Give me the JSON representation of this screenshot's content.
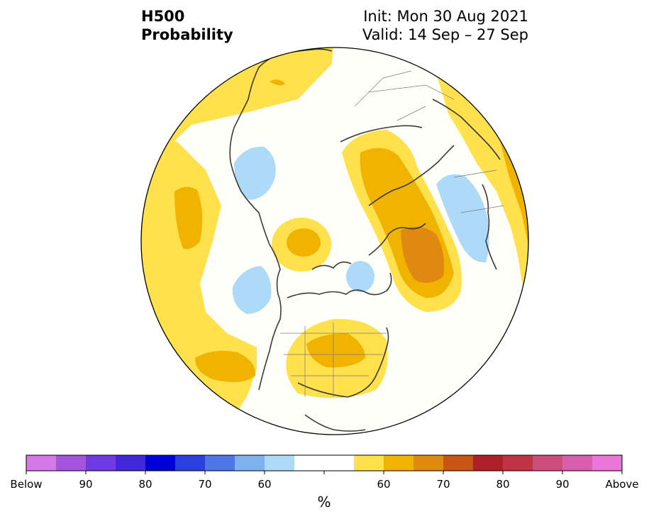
{
  "header": {
    "variable": "H500",
    "product": "Probability",
    "init": "Init: Mon 30 Aug 2021",
    "valid": "Valid: 14 Sep – 27 Sep"
  },
  "map": {
    "projection": "north-polar-stereographic",
    "background_color": "#fffffa",
    "coastline_color": "#3a3a3a",
    "anomalies": [
      {
        "region": "Northeast Pacific",
        "category": "above",
        "probability": "55-60"
      },
      {
        "region": "North Pacific core",
        "category": "above",
        "probability": "60-65"
      },
      {
        "region": "Subtropical East Pacific",
        "category": "above",
        "probability": "60-65"
      },
      {
        "region": "Alaska / Bering Sea",
        "category": "below",
        "probability": "55-60"
      },
      {
        "region": "Canadian Arctic",
        "category": "above",
        "probability": "60-65"
      },
      {
        "region": "Great Lakes / Eastern US",
        "category": "above",
        "probability": "60-65"
      },
      {
        "region": "Northern Greenland",
        "category": "below",
        "probability": "55-60"
      },
      {
        "region": "Eastern Siberia",
        "category": "below",
        "probability": "55-60"
      },
      {
        "region": "Northern Russia / Barents Sea",
        "category": "above",
        "probability": "65-70"
      },
      {
        "region": "East Asia",
        "category": "above",
        "probability": "55-60"
      },
      {
        "region": "North Atlantic / North Africa",
        "category": "above",
        "probability": "55-60"
      }
    ]
  },
  "colorbar": {
    "unit": "%",
    "colors": [
      "#d578e8",
      "#a453dc",
      "#6f3be0",
      "#4127d6",
      "#0000d8",
      "#2a3fdc",
      "#4f76e6",
      "#7db2ef",
      "#aedaf9",
      "#ffffff",
      "#ffffff",
      "#ffe04d",
      "#f0b400",
      "#df8812",
      "#c95514",
      "#ae2128",
      "#c03347",
      "#cc4d7b",
      "#db5eae",
      "#e976d8"
    ],
    "tick_labels": [
      "Below",
      "90",
      "80",
      "70",
      "60",
      "60",
      "70",
      "80",
      "90",
      "Above"
    ]
  }
}
